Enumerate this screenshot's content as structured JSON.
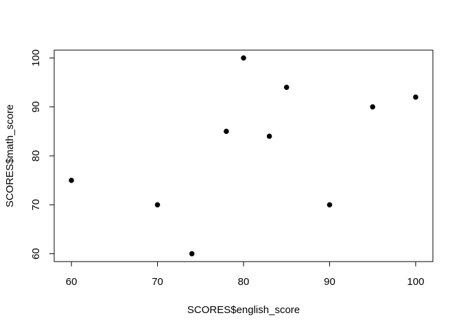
{
  "chart_data": {
    "type": "scatter",
    "title": "",
    "xlabel": "SCORES$english_score",
    "ylabel": "SCORES$math_score",
    "xlim": [
      58,
      102
    ],
    "ylim": [
      58.4,
      101.6
    ],
    "x_ticks": [
      60,
      70,
      80,
      90,
      100
    ],
    "y_ticks": [
      60,
      70,
      80,
      90,
      100
    ],
    "x_tick_labels": [
      "60",
      "70",
      "80",
      "90",
      "100"
    ],
    "y_tick_labels": [
      "60",
      "70",
      "80",
      "90",
      "100"
    ],
    "grid": false,
    "legend": "none",
    "marker": "filled-circle",
    "marker_color": "#000000",
    "points": [
      {
        "x": 60,
        "y": 75
      },
      {
        "x": 70,
        "y": 70
      },
      {
        "x": 74,
        "y": 60
      },
      {
        "x": 78,
        "y": 85
      },
      {
        "x": 80,
        "y": 100
      },
      {
        "x": 83,
        "y": 84
      },
      {
        "x": 85,
        "y": 94
      },
      {
        "x": 90,
        "y": 70
      },
      {
        "x": 95,
        "y": 90
      },
      {
        "x": 100,
        "y": 92
      }
    ]
  }
}
